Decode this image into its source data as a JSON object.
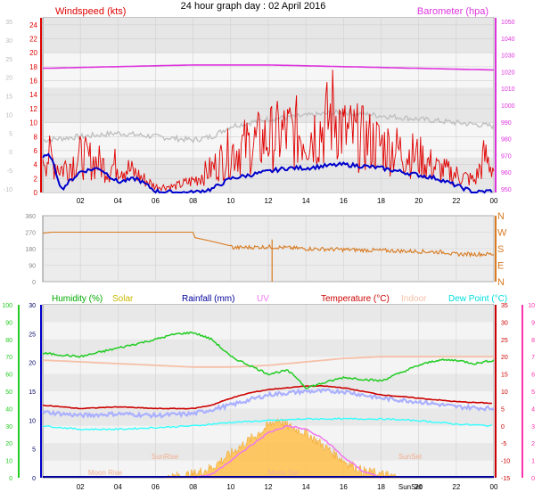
{
  "title": "24 hour graph day : 02 April 2016",
  "colors": {
    "windspeed": "#e00000",
    "avg_wind": "#0000cc",
    "gust_trace": "#c0c0c0",
    "barometer": "#dd33dd",
    "direction": "#d87a20",
    "humidity": "#22cc22",
    "solar": "#d4c400",
    "rainfall": "#000099",
    "uv": "#ee77ee",
    "temperature": "#cc0000",
    "indoor": "#f5c0a8",
    "dewpoint": "#33ffff",
    "solar_fill": "#ffc04a",
    "axis_green": "#22cc22",
    "axis_pink": "#ff33aa",
    "axis_blue": "#0000cc"
  },
  "x_ticks": [
    "02",
    "04",
    "06",
    "08",
    "10",
    "12",
    "14",
    "16",
    "18",
    "20",
    "22",
    "00"
  ],
  "chart_data": [
    {
      "type": "line",
      "name": "wind-barometer",
      "left_label": "Windspeed (kts)",
      "right_label": "Barometer (hpa)",
      "left_ticks": [
        24,
        22,
        20,
        18,
        16,
        14,
        12,
        10,
        8,
        6,
        4,
        2,
        0
      ],
      "faint_left_ticks": [
        35,
        30,
        25,
        20,
        15,
        10,
        5,
        0,
        -5,
        -10
      ],
      "right_ticks": [
        1050,
        1040,
        1030,
        1020,
        1010,
        1000,
        990,
        980,
        970,
        960,
        950
      ],
      "ylim": [
        0,
        25
      ],
      "xlim": [
        0,
        24
      ],
      "series": [
        {
          "key": "windspeed",
          "x": [
            0,
            1,
            2,
            3,
            3.5,
            4,
            5,
            6,
            7,
            8,
            9,
            10,
            11,
            12,
            13,
            14,
            15,
            15.5,
            16,
            17,
            18,
            19,
            20,
            21,
            22,
            23,
            23.5,
            24
          ],
          "values": [
            7,
            4,
            6,
            5,
            4,
            5,
            3,
            1,
            1,
            2,
            4,
            7,
            8,
            9,
            10,
            10,
            11,
            14,
            10,
            9,
            8,
            7,
            6,
            4,
            3,
            2,
            6,
            4
          ]
        },
        {
          "key": "avg_wind",
          "x": [
            0,
            0.4,
            1,
            2,
            3,
            4,
            5,
            6,
            7,
            8,
            9,
            10,
            11,
            12,
            13,
            14,
            15,
            16,
            17,
            18,
            19,
            20,
            21,
            22,
            23,
            24
          ],
          "values": [
            5,
            5.3,
            0.5,
            3,
            3.5,
            1.5,
            2,
            0.2,
            0,
            0,
            0.5,
            2,
            2.5,
            3,
            3.5,
            3.5,
            3.8,
            4,
            3.8,
            3.5,
            3,
            2.5,
            2,
            1,
            0,
            0.3
          ]
        },
        {
          "key": "gust_trace",
          "x": [
            0,
            2,
            4,
            6,
            8,
            9,
            10,
            12,
            14,
            16,
            18,
            20,
            22,
            24
          ],
          "values": [
            7.5,
            8,
            8.5,
            8,
            7.5,
            8,
            9.5,
            10.5,
            11,
            11.5,
            11,
            10.5,
            10,
            9.5
          ]
        },
        {
          "key": "barometer",
          "x": [
            0,
            4,
            8,
            12,
            16,
            20,
            24
          ],
          "values": [
            1022,
            1023,
            1024,
            1024,
            1023,
            1022,
            1021
          ]
        }
      ]
    },
    {
      "type": "line",
      "name": "wind-direction",
      "left_ticks": [
        360,
        270,
        180,
        90,
        0
      ],
      "right_labels": [
        "N",
        "W",
        "S",
        "E",
        "N"
      ],
      "ylim": [
        0,
        360
      ],
      "xlim": [
        0,
        24
      ],
      "series": [
        {
          "key": "direction",
          "x": [
            0,
            0.5,
            8,
            8.1,
            9,
            10,
            10.1,
            12,
            14,
            16,
            18,
            20,
            21.6,
            21.7,
            24
          ],
          "values": [
            265,
            270,
            270,
            240,
            220,
            195,
            185,
            190,
            180,
            175,
            170,
            165,
            160,
            150,
            150
          ]
        }
      ]
    },
    {
      "type": "line",
      "name": "humidity-temperature",
      "legend": [
        {
          "key": "humidity",
          "label": "Humidity (%)"
        },
        {
          "key": "solar",
          "label": "Solar"
        },
        {
          "key": "rainfall",
          "label": "Rainfall (mm)"
        },
        {
          "key": "uv",
          "label": "UV"
        },
        {
          "key": "temperature",
          "label": "Temperature (°C)"
        },
        {
          "key": "indoor",
          "label": "Indoor"
        },
        {
          "key": "dewpoint",
          "label": "Dew Point (°C)"
        }
      ],
      "humidity_ticks": [
        100,
        90,
        80,
        70,
        60,
        50,
        40,
        30,
        20,
        10,
        0
      ],
      "rain_ticks": [
        30,
        25,
        20,
        15,
        10,
        5,
        0
      ],
      "temp_ticks": [
        35,
        30,
        25,
        20,
        15,
        10,
        5,
        0,
        -5,
        -10,
        -15
      ],
      "uv_ticks": [
        10,
        9,
        8,
        7,
        6,
        5,
        4,
        3,
        2,
        1,
        0
      ],
      "annotations": [
        "Moon Rise",
        "SunRise",
        "Moon Set",
        "SunSet",
        "SunSet"
      ],
      "xlim": [
        0,
        24
      ],
      "series": [
        {
          "key": "humidity",
          "axis": "humidity",
          "x": [
            0,
            2,
            4,
            6,
            7,
            8,
            9,
            10,
            11,
            12,
            13,
            13.5,
            14,
            15,
            16,
            18,
            20,
            21,
            22,
            23,
            24
          ],
          "values": [
            72,
            70,
            75,
            80,
            83,
            84,
            80,
            70,
            65,
            60,
            62,
            58,
            52,
            55,
            58,
            56,
            65,
            68,
            68,
            66,
            68
          ]
        },
        {
          "key": "temperature",
          "axis": "temp",
          "x": [
            0,
            2,
            4,
            6,
            8,
            9,
            10,
            11,
            12,
            13,
            14,
            15,
            16,
            17,
            18,
            19,
            20,
            22,
            24
          ],
          "values": [
            6,
            5,
            5.5,
            5,
            5,
            6,
            8,
            9.5,
            10.5,
            11,
            11.5,
            11.5,
            11,
            10,
            9,
            8.5,
            8,
            7,
            6.5
          ]
        },
        {
          "key": "dewpoint",
          "axis": "temp",
          "x": [
            0,
            2,
            4,
            6,
            8,
            10,
            12,
            14,
            16,
            18,
            20,
            22,
            24
          ],
          "values": [
            0,
            -1,
            -1,
            -0.5,
            0,
            1,
            1.5,
            2,
            2,
            2,
            1.5,
            0.5,
            0
          ]
        },
        {
          "key": "indoor",
          "axis": "temp",
          "x": [
            0,
            2,
            4,
            6,
            8,
            10,
            12,
            14,
            16,
            18,
            20,
            22,
            24
          ],
          "values": [
            19,
            18.5,
            18,
            17.5,
            17,
            17,
            17.5,
            18.5,
            19.5,
            20,
            20,
            20,
            20
          ]
        },
        {
          "key": "feels",
          "axis": "temp",
          "x": [
            0,
            2,
            4,
            6,
            8,
            10,
            12,
            14,
            16,
            18,
            20,
            22,
            24
          ],
          "values": [
            4,
            3,
            3.5,
            3,
            3.5,
            6,
            9,
            10,
            10,
            8,
            7,
            5.5,
            5
          ]
        },
        {
          "key": "uv",
          "axis": "temp",
          "x": [
            8,
            9,
            10,
            11,
            12,
            13,
            14,
            15,
            16,
            17,
            18
          ],
          "values": [
            -15,
            -14,
            -10,
            -6,
            -2,
            0,
            -1,
            -4,
            -9,
            -13,
            -15
          ]
        },
        {
          "key": "solar",
          "axis": "temp",
          "x": [
            6.5,
            8,
            9,
            10,
            11,
            12,
            12.5,
            13,
            14,
            15,
            16,
            17,
            18,
            19
          ],
          "values": [
            -15,
            -14,
            -12,
            -8,
            -4,
            0,
            2,
            0,
            -2,
            -6,
            -10,
            -13,
            -14,
            -15
          ]
        }
      ]
    }
  ]
}
